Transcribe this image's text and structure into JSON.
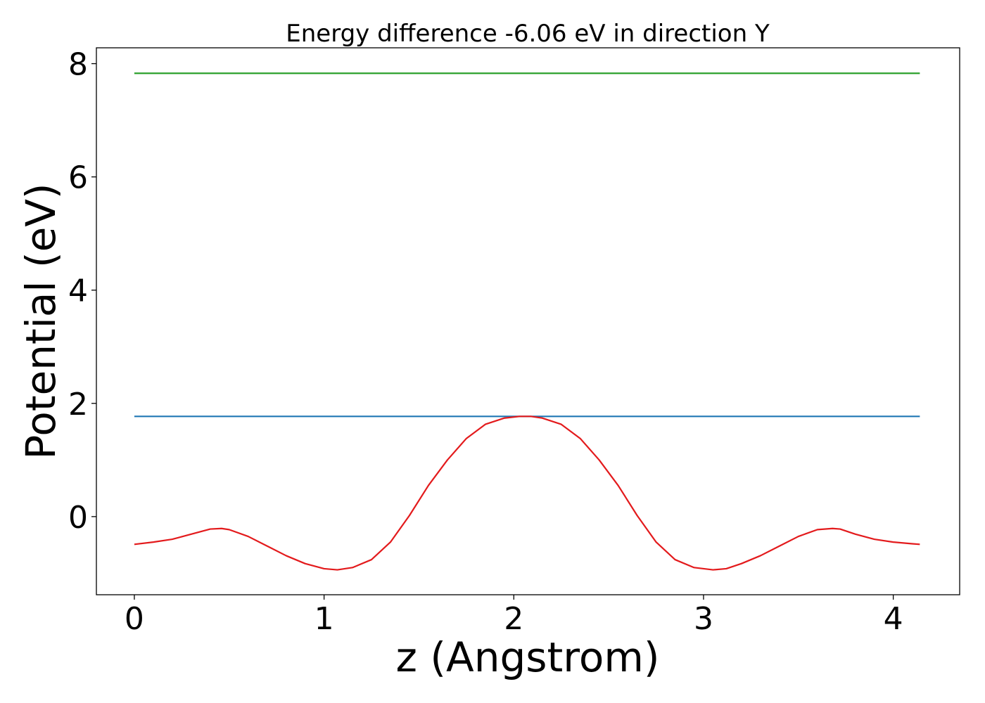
{
  "chart_data": {
    "type": "line",
    "title": "Energy difference -6.06 eV in direction Y",
    "xlabel": "z (Angstrom)",
    "ylabel": "Potential (eV)",
    "xlim": [
      -0.2,
      4.35
    ],
    "ylim": [
      -1.38,
      8.28
    ],
    "xticks": [
      0,
      1,
      2,
      3,
      4
    ],
    "yticks": [
      0,
      2,
      4,
      6,
      8
    ],
    "grid": false,
    "legend": "none",
    "series": [
      {
        "color": "#2ca02c",
        "style": "horizontal",
        "x": [
          0,
          4.14
        ],
        "y": [
          7.83,
          7.83
        ]
      },
      {
        "color": "#1f77b4",
        "style": "horizontal",
        "x": [
          0,
          4.14
        ],
        "y": [
          1.77,
          1.77
        ]
      },
      {
        "color": "#e31a1c",
        "style": "curve",
        "x": [
          0,
          0.1,
          0.2,
          0.3,
          0.4,
          0.46,
          0.5,
          0.6,
          0.7,
          0.8,
          0.9,
          1.0,
          1.07,
          1.15,
          1.25,
          1.35,
          1.45,
          1.55,
          1.65,
          1.75,
          1.85,
          1.95,
          2.03,
          2.09,
          2.15,
          2.25,
          2.35,
          2.45,
          2.55,
          2.65,
          2.75,
          2.85,
          2.95,
          3.05,
          3.12,
          3.2,
          3.3,
          3.4,
          3.5,
          3.6,
          3.68,
          3.72,
          3.8,
          3.9,
          4.0,
          4.1,
          4.14
        ],
        "y": [
          -0.49,
          -0.45,
          -0.4,
          -0.31,
          -0.22,
          -0.21,
          -0.23,
          -0.35,
          -0.52,
          -0.69,
          -0.83,
          -0.92,
          -0.94,
          -0.9,
          -0.76,
          -0.45,
          0.02,
          0.55,
          1.0,
          1.38,
          1.63,
          1.74,
          1.77,
          1.77,
          1.74,
          1.63,
          1.38,
          1.0,
          0.55,
          0.02,
          -0.45,
          -0.76,
          -0.9,
          -0.94,
          -0.92,
          -0.83,
          -0.69,
          -0.52,
          -0.35,
          -0.23,
          -0.21,
          -0.22,
          -0.31,
          -0.4,
          -0.45,
          -0.48,
          -0.49
        ]
      }
    ]
  }
}
